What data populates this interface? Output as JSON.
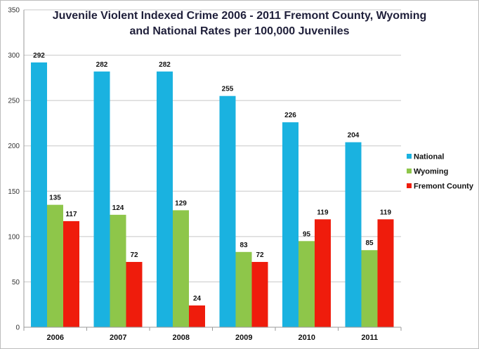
{
  "chart_data": {
    "type": "bar",
    "title_lines": [
      "Juvenile Violent Indexed Crime 2006 - 2011 Fremont County, Wyoming",
      "and National Rates per 100,000 Juveniles"
    ],
    "categories": [
      "2006",
      "2007",
      "2008",
      "2009",
      "2010",
      "2011"
    ],
    "series": [
      {
        "name": "National",
        "color": "#1ab2e0",
        "values": [
          292,
          282,
          282,
          255,
          226,
          204
        ]
      },
      {
        "name": "Wyoming",
        "color": "#8ec64a",
        "values": [
          135,
          124,
          129,
          83,
          95,
          85
        ]
      },
      {
        "name": "Fremont County",
        "color": "#ef1c0c",
        "values": [
          117,
          72,
          24,
          72,
          119,
          119
        ]
      }
    ],
    "ylim": [
      0,
      350
    ],
    "yticks": [
      0,
      50,
      100,
      150,
      200,
      250,
      300,
      350
    ],
    "xlabel": "",
    "ylabel": "",
    "grid": true,
    "legend_position": "right"
  }
}
